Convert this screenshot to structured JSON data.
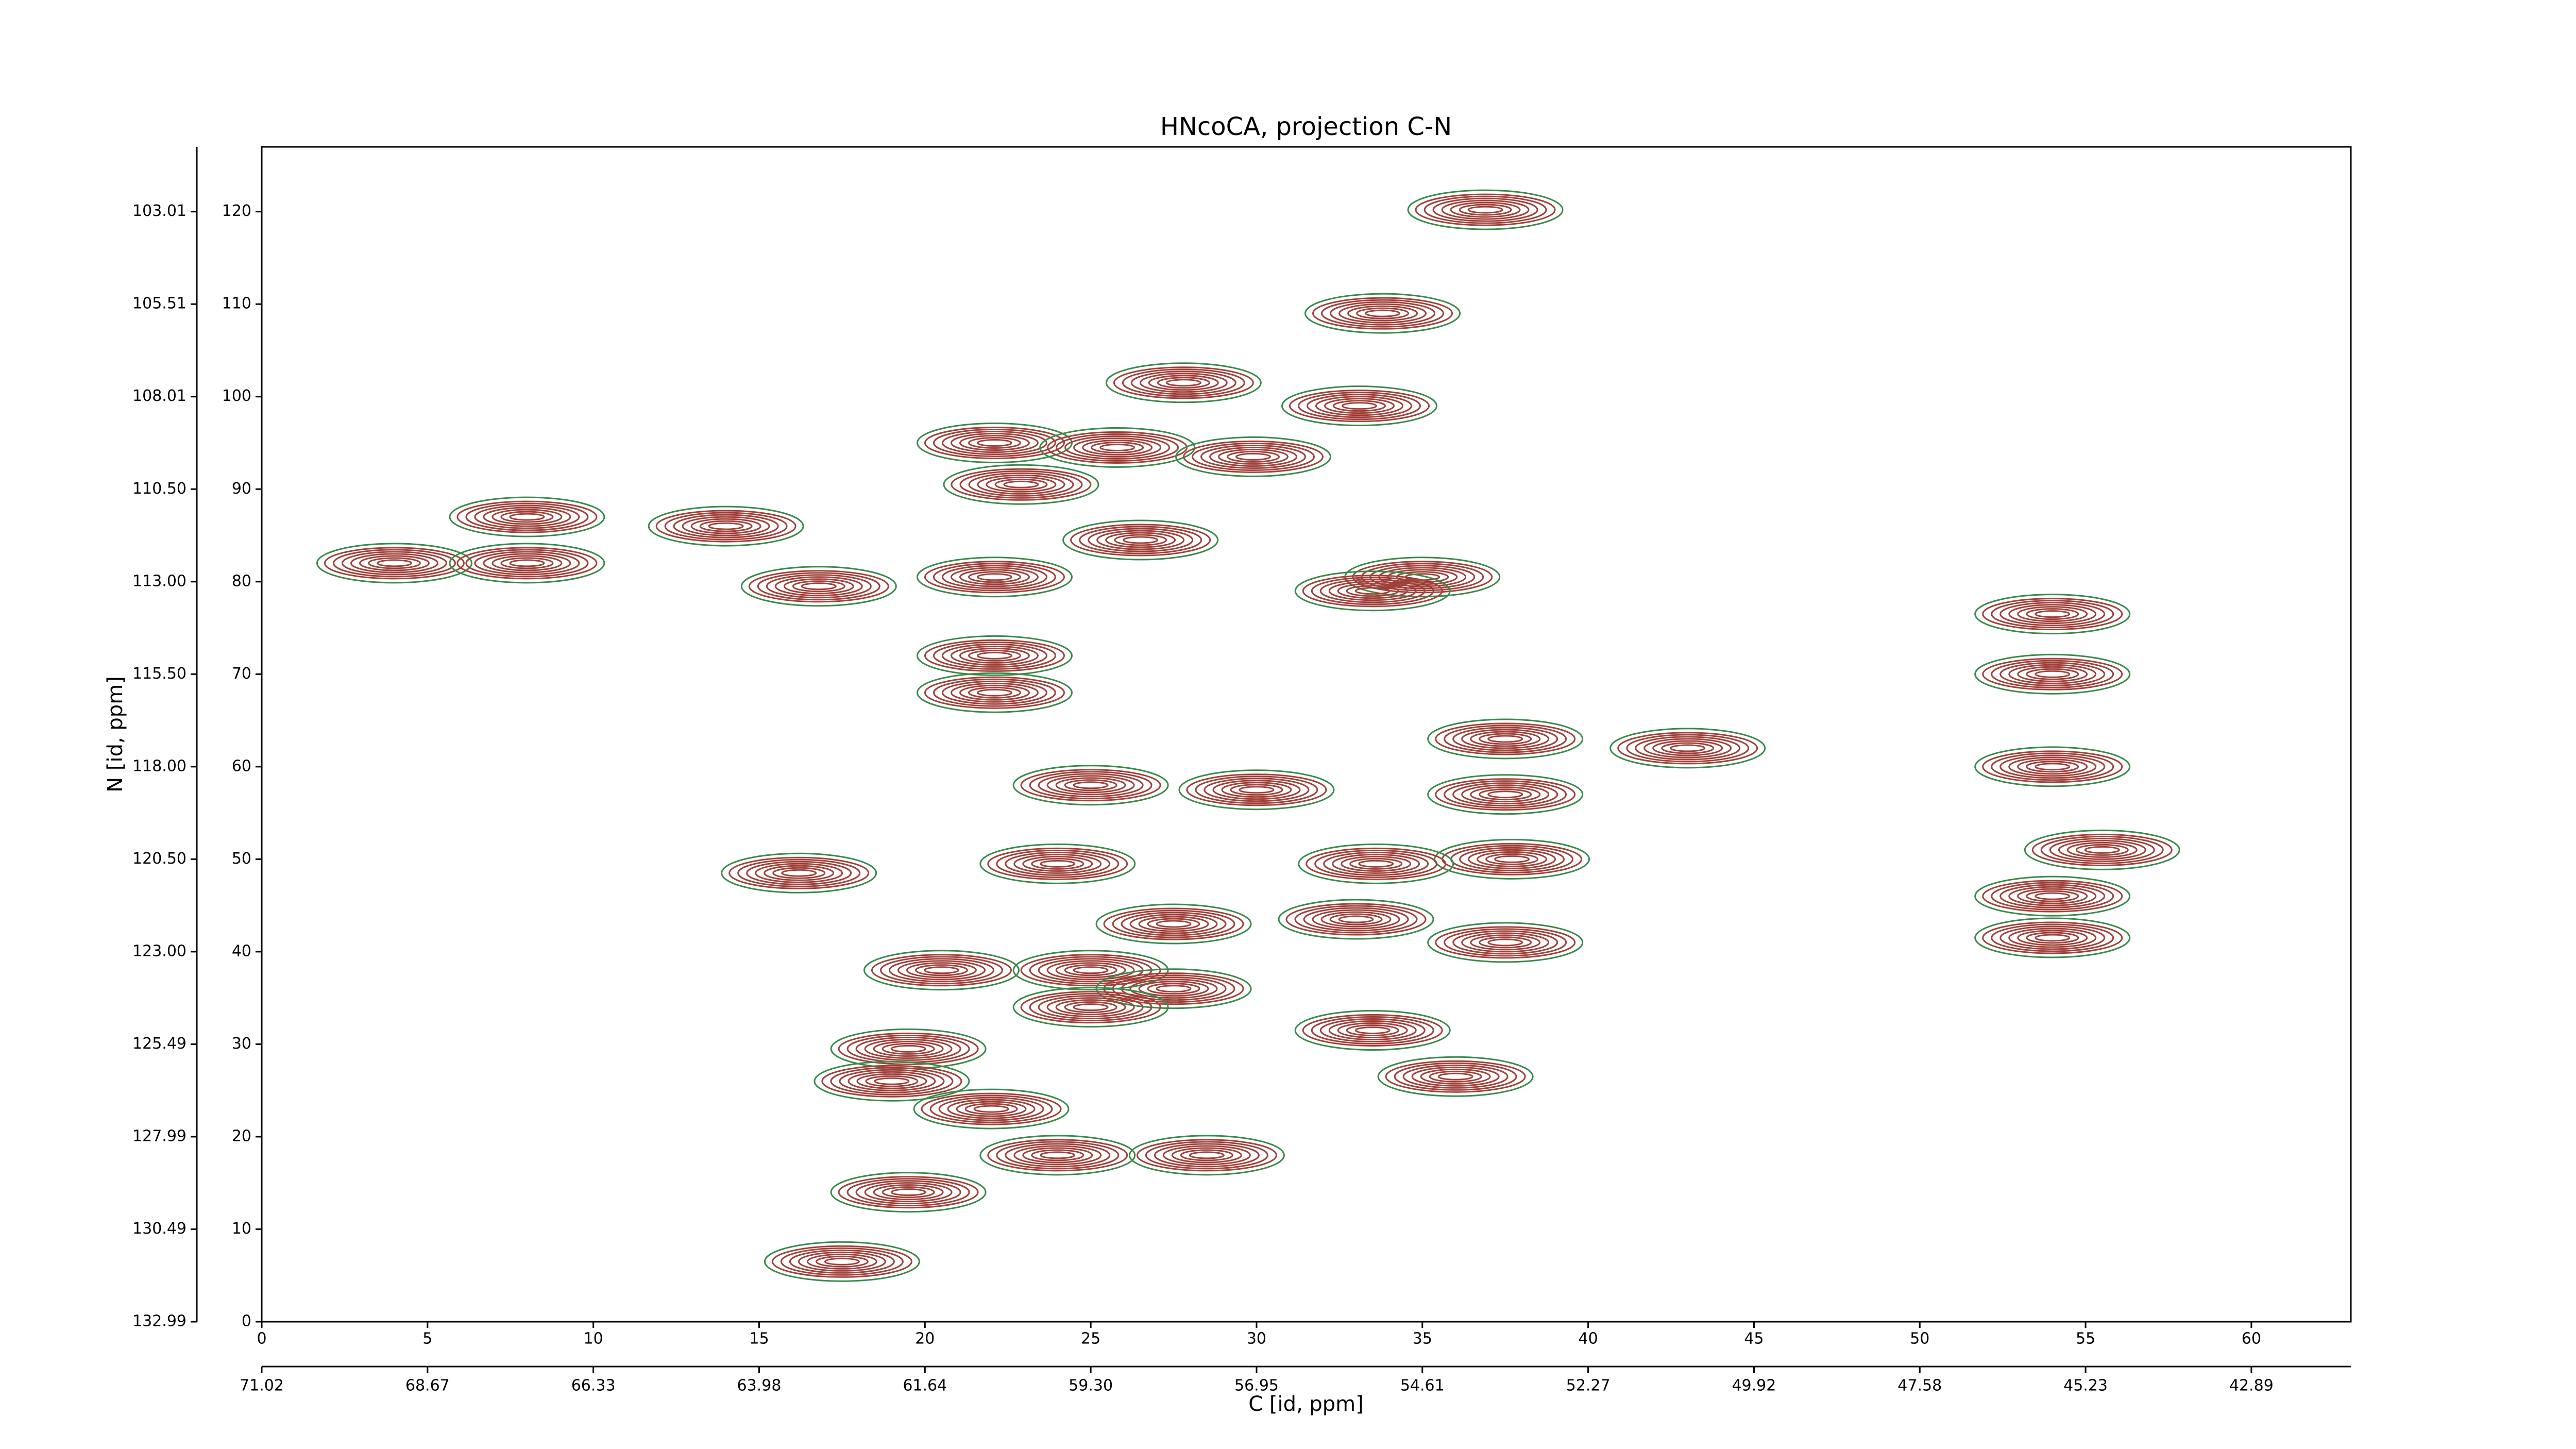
{
  "chart_data": {
    "type": "contour",
    "title": "HNcoCA, projection C-N",
    "x_label": "C [id, ppm]",
    "y_label": "N [id, ppm]",
    "xlim": [
      0,
      63
    ],
    "ylim": [
      0,
      127
    ],
    "xticks": [
      0,
      5,
      10,
      15,
      20,
      25,
      30,
      35,
      40,
      45,
      50,
      55,
      60
    ],
    "yticks": [
      0,
      10,
      20,
      30,
      40,
      50,
      60,
      70,
      80,
      90,
      100,
      110,
      120
    ],
    "x2ticks": [
      {
        "value": 0,
        "label": "71.02"
      },
      {
        "value": 5,
        "label": "68.67"
      },
      {
        "value": 10,
        "label": "66.33"
      },
      {
        "value": 15,
        "label": "63.98"
      },
      {
        "value": 20,
        "label": "61.64"
      },
      {
        "value": 25,
        "label": "59.30"
      },
      {
        "value": 30,
        "label": "56.95"
      },
      {
        "value": 35,
        "label": "54.61"
      },
      {
        "value": 40,
        "label": "52.27"
      },
      {
        "value": 45,
        "label": "49.92"
      },
      {
        "value": 50,
        "label": "47.58"
      },
      {
        "value": 55,
        "label": "45.23"
      },
      {
        "value": 60,
        "label": "42.89"
      }
    ],
    "y2ticks": [
      {
        "value": 0,
        "label": "132.99"
      },
      {
        "value": 10,
        "label": "130.49"
      },
      {
        "value": 20,
        "label": "127.99"
      },
      {
        "value": 30,
        "label": "125.49"
      },
      {
        "value": 40,
        "label": "123.00"
      },
      {
        "value": 50,
        "label": "120.50"
      },
      {
        "value": 60,
        "label": "118.00"
      },
      {
        "value": 70,
        "label": "115.50"
      },
      {
        "value": 80,
        "label": "113.00"
      },
      {
        "value": 90,
        "label": "110.50"
      },
      {
        "value": 100,
        "label": "108.01"
      },
      {
        "value": 110,
        "label": "105.51"
      },
      {
        "value": 120,
        "label": "103.01"
      }
    ],
    "positive_color": "#a0413a",
    "negative_color": "#3a8a4a",
    "peaks": {
      "x": [
        36.9,
        33.8,
        27.8,
        33.1,
        22.1,
        25.8,
        29.9,
        22.9,
        26.5,
        16.8,
        22.1,
        35,
        33.5,
        22.1,
        22.1,
        37.5,
        43,
        25,
        30,
        37.5,
        37.7,
        33.6,
        24,
        16.2,
        27.5,
        33,
        37.5,
        20.5,
        25,
        27.5,
        25,
        33.5,
        36,
        19.5,
        19,
        22,
        24,
        28.5,
        19.5,
        17.5,
        54,
        54,
        54,
        55.5,
        54,
        54,
        4,
        8,
        8,
        14
      ],
      "y": [
        120.2,
        109,
        101.5,
        99,
        95,
        94.5,
        93.5,
        90.5,
        84.5,
        79.5,
        80.5,
        80.5,
        79,
        72,
        68,
        63,
        62,
        58,
        57.5,
        57,
        50,
        49.5,
        49.5,
        48.5,
        43,
        43.5,
        41,
        38,
        38,
        36,
        34,
        31.5,
        26.5,
        29.5,
        26,
        23,
        18,
        18,
        14,
        6.5,
        76.5,
        70,
        60,
        51,
        46,
        41.5,
        82,
        87,
        82,
        86
      ]
    }
  }
}
